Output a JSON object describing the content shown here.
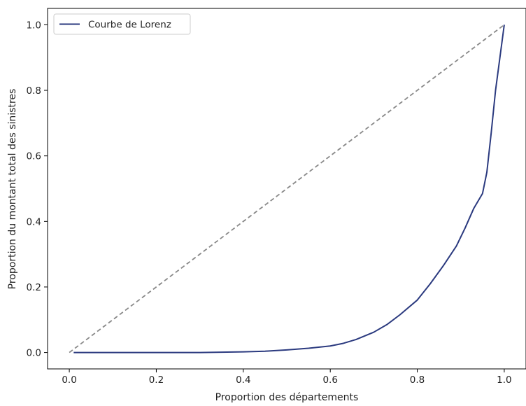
{
  "chart_data": {
    "type": "line",
    "title": "",
    "xlabel": "Proportion des départements",
    "ylabel": "Proportion du montant total des sinistres",
    "xlim": [
      -0.05,
      1.05
    ],
    "ylim": [
      -0.05,
      1.05
    ],
    "x_ticks": [
      0.0,
      0.2,
      0.4,
      0.6,
      0.8,
      1.0
    ],
    "x_tick_labels": [
      "0.0",
      "0.2",
      "0.4",
      "0.6",
      "0.8",
      "1.0"
    ],
    "y_ticks": [
      0.0,
      0.2,
      0.4,
      0.6,
      0.8,
      1.0
    ],
    "y_tick_labels": [
      "0.0",
      "0.2",
      "0.4",
      "0.6",
      "0.8",
      "1.0"
    ],
    "grid": false,
    "legend": {
      "placement": "top-left",
      "entries": [
        "Courbe de Lorenz"
      ]
    },
    "series": [
      {
        "name": "Courbe de Lorenz",
        "color": "#2b3a7f",
        "style": "solid",
        "x": [
          0.01,
          0.1,
          0.2,
          0.3,
          0.35,
          0.4,
          0.45,
          0.5,
          0.55,
          0.6,
          0.63,
          0.66,
          0.7,
          0.73,
          0.76,
          0.8,
          0.83,
          0.86,
          0.89,
          0.91,
          0.93,
          0.95,
          0.96,
          0.97,
          0.98,
          0.99,
          1.0
        ],
        "y": [
          0.0,
          0.0,
          0.0,
          0.0,
          0.001,
          0.002,
          0.004,
          0.008,
          0.013,
          0.02,
          0.028,
          0.04,
          0.062,
          0.085,
          0.115,
          0.16,
          0.21,
          0.265,
          0.325,
          0.38,
          0.44,
          0.485,
          0.55,
          0.67,
          0.8,
          0.9,
          1.0
        ]
      },
      {
        "name": "",
        "color": "#888888",
        "style": "dashed",
        "x": [
          0.0,
          1.0
        ],
        "y": [
          0.0,
          1.0
        ]
      }
    ]
  }
}
